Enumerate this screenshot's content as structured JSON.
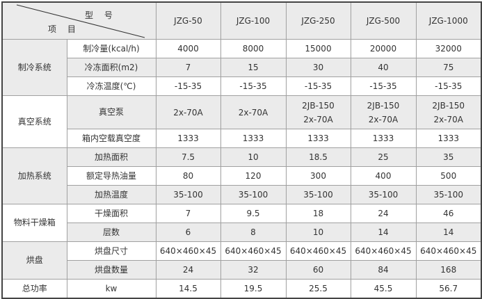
{
  "header": {
    "model_label": "型 号",
    "item_label": "项 目",
    "models": [
      "JZG-50",
      "JZG-100",
      "JZG-250",
      "JZG-500",
      "JZG-1000"
    ]
  },
  "groups": [
    {
      "name": "制冷系统",
      "rows": [
        {
          "label": "制冷量(kcal/h)",
          "values": [
            "4000",
            "8000",
            "15000",
            "20000",
            "32000"
          ]
        },
        {
          "label": "冷冻面积(m2)",
          "values": [
            "7",
            "15",
            "30",
            "40",
            "75"
          ]
        },
        {
          "label": "冷冻温度(℃)",
          "values": [
            "-15-35",
            "-15-35",
            "-15-35",
            "-15-35",
            "-15-35"
          ]
        }
      ]
    },
    {
      "name": "真空系统",
      "rows": [
        {
          "label": "真空泵",
          "values": [
            [
              "2x-70A"
            ],
            [
              "2x-70A"
            ],
            [
              "2JB-150",
              "2x-70A"
            ],
            [
              "2JB-150",
              "2x-70A"
            ],
            [
              "2JB-150",
              "2x-70A"
            ]
          ]
        },
        {
          "label": "箱内空载真空度",
          "values": [
            "1333",
            "1333",
            "1333",
            "1333",
            "1333"
          ]
        }
      ]
    },
    {
      "name": "加热系统",
      "rows": [
        {
          "label": "加热面积",
          "values": [
            "7.5",
            "10",
            "18.5",
            "25",
            "35"
          ]
        },
        {
          "label": "额定导热油量",
          "values": [
            "80",
            "120",
            "300",
            "400",
            "500"
          ]
        },
        {
          "label": "加热温度",
          "values": [
            "35-100",
            "35-100",
            "35-100",
            "35-100",
            "35-100"
          ]
        }
      ]
    },
    {
      "name": "物料干燥箱",
      "rows": [
        {
          "label": "干燥面积",
          "values": [
            "7",
            "9.5",
            "18",
            "24",
            "46"
          ]
        },
        {
          "label": "层数",
          "values": [
            "6",
            "8",
            "10",
            "14",
            "14"
          ]
        }
      ]
    },
    {
      "name": "烘盘",
      "rows": [
        {
          "label": "烘盘尺寸",
          "values": [
            "640×460×45",
            "640×460×45",
            "640×460×45",
            "640×460×45",
            "640×460×45"
          ]
        },
        {
          "label": "烘盘数量",
          "values": [
            "24",
            "32",
            "60",
            "84",
            "168"
          ]
        }
      ]
    },
    {
      "name": "总功率",
      "rows": [
        {
          "label": "kw",
          "values": [
            "14.5",
            "19.5",
            "25.5",
            "45.5",
            "56.7"
          ]
        }
      ]
    }
  ]
}
